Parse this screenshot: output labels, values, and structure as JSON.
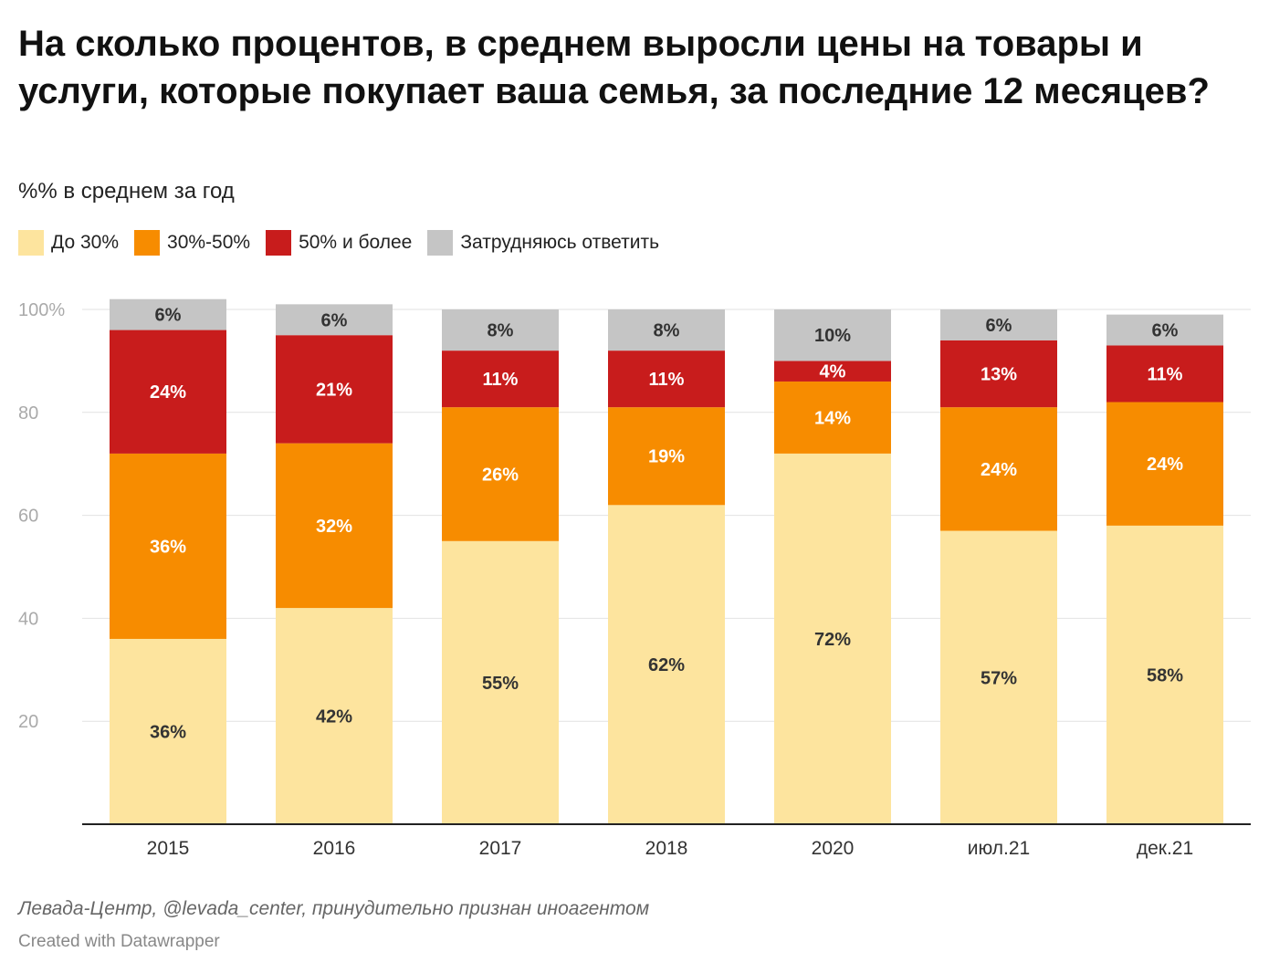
{
  "title": "На сколько процентов, в среднем выросли цены на товары и услуги, которые покупает ваша семья, за последние 12 месяцев?",
  "subtitle": "%% в среднем за год",
  "notes": "Левада-Центр, @levada_center, принудительно признан иноагентом",
  "credit": "Created with Datawrapper",
  "chart_data": {
    "type": "bar",
    "stacked": true,
    "categories": [
      "2015",
      "2016",
      "2017",
      "2018",
      "2020",
      "июл.21",
      "дек.21"
    ],
    "series": [
      {
        "name": "До 30%",
        "color": "#fde49e",
        "label_color": "#333333",
        "values": [
          36,
          42,
          55,
          62,
          72,
          57,
          58
        ]
      },
      {
        "name": "30%-50%",
        "color": "#f78c00",
        "label_color": "#ffffff",
        "values": [
          36,
          32,
          26,
          19,
          14,
          24,
          24
        ]
      },
      {
        "name": "50% и более",
        "color": "#c81c1c",
        "label_color": "#ffffff",
        "values": [
          24,
          21,
          11,
          11,
          4,
          13,
          11
        ]
      },
      {
        "name": "Затрудняюсь ответить",
        "color": "#c5c5c5",
        "label_color": "#333333",
        "values": [
          6,
          6,
          8,
          8,
          10,
          6,
          6
        ]
      }
    ],
    "y_ticks": [
      {
        "value": 20,
        "label": "20"
      },
      {
        "value": 40,
        "label": "40"
      },
      {
        "value": 60,
        "label": "60"
      },
      {
        "value": 80,
        "label": "80"
      },
      {
        "value": 100,
        "label": "100%"
      }
    ],
    "ylim": [
      0,
      100
    ],
    "grid": true,
    "legend": "top-left",
    "label_suffix": "%"
  }
}
